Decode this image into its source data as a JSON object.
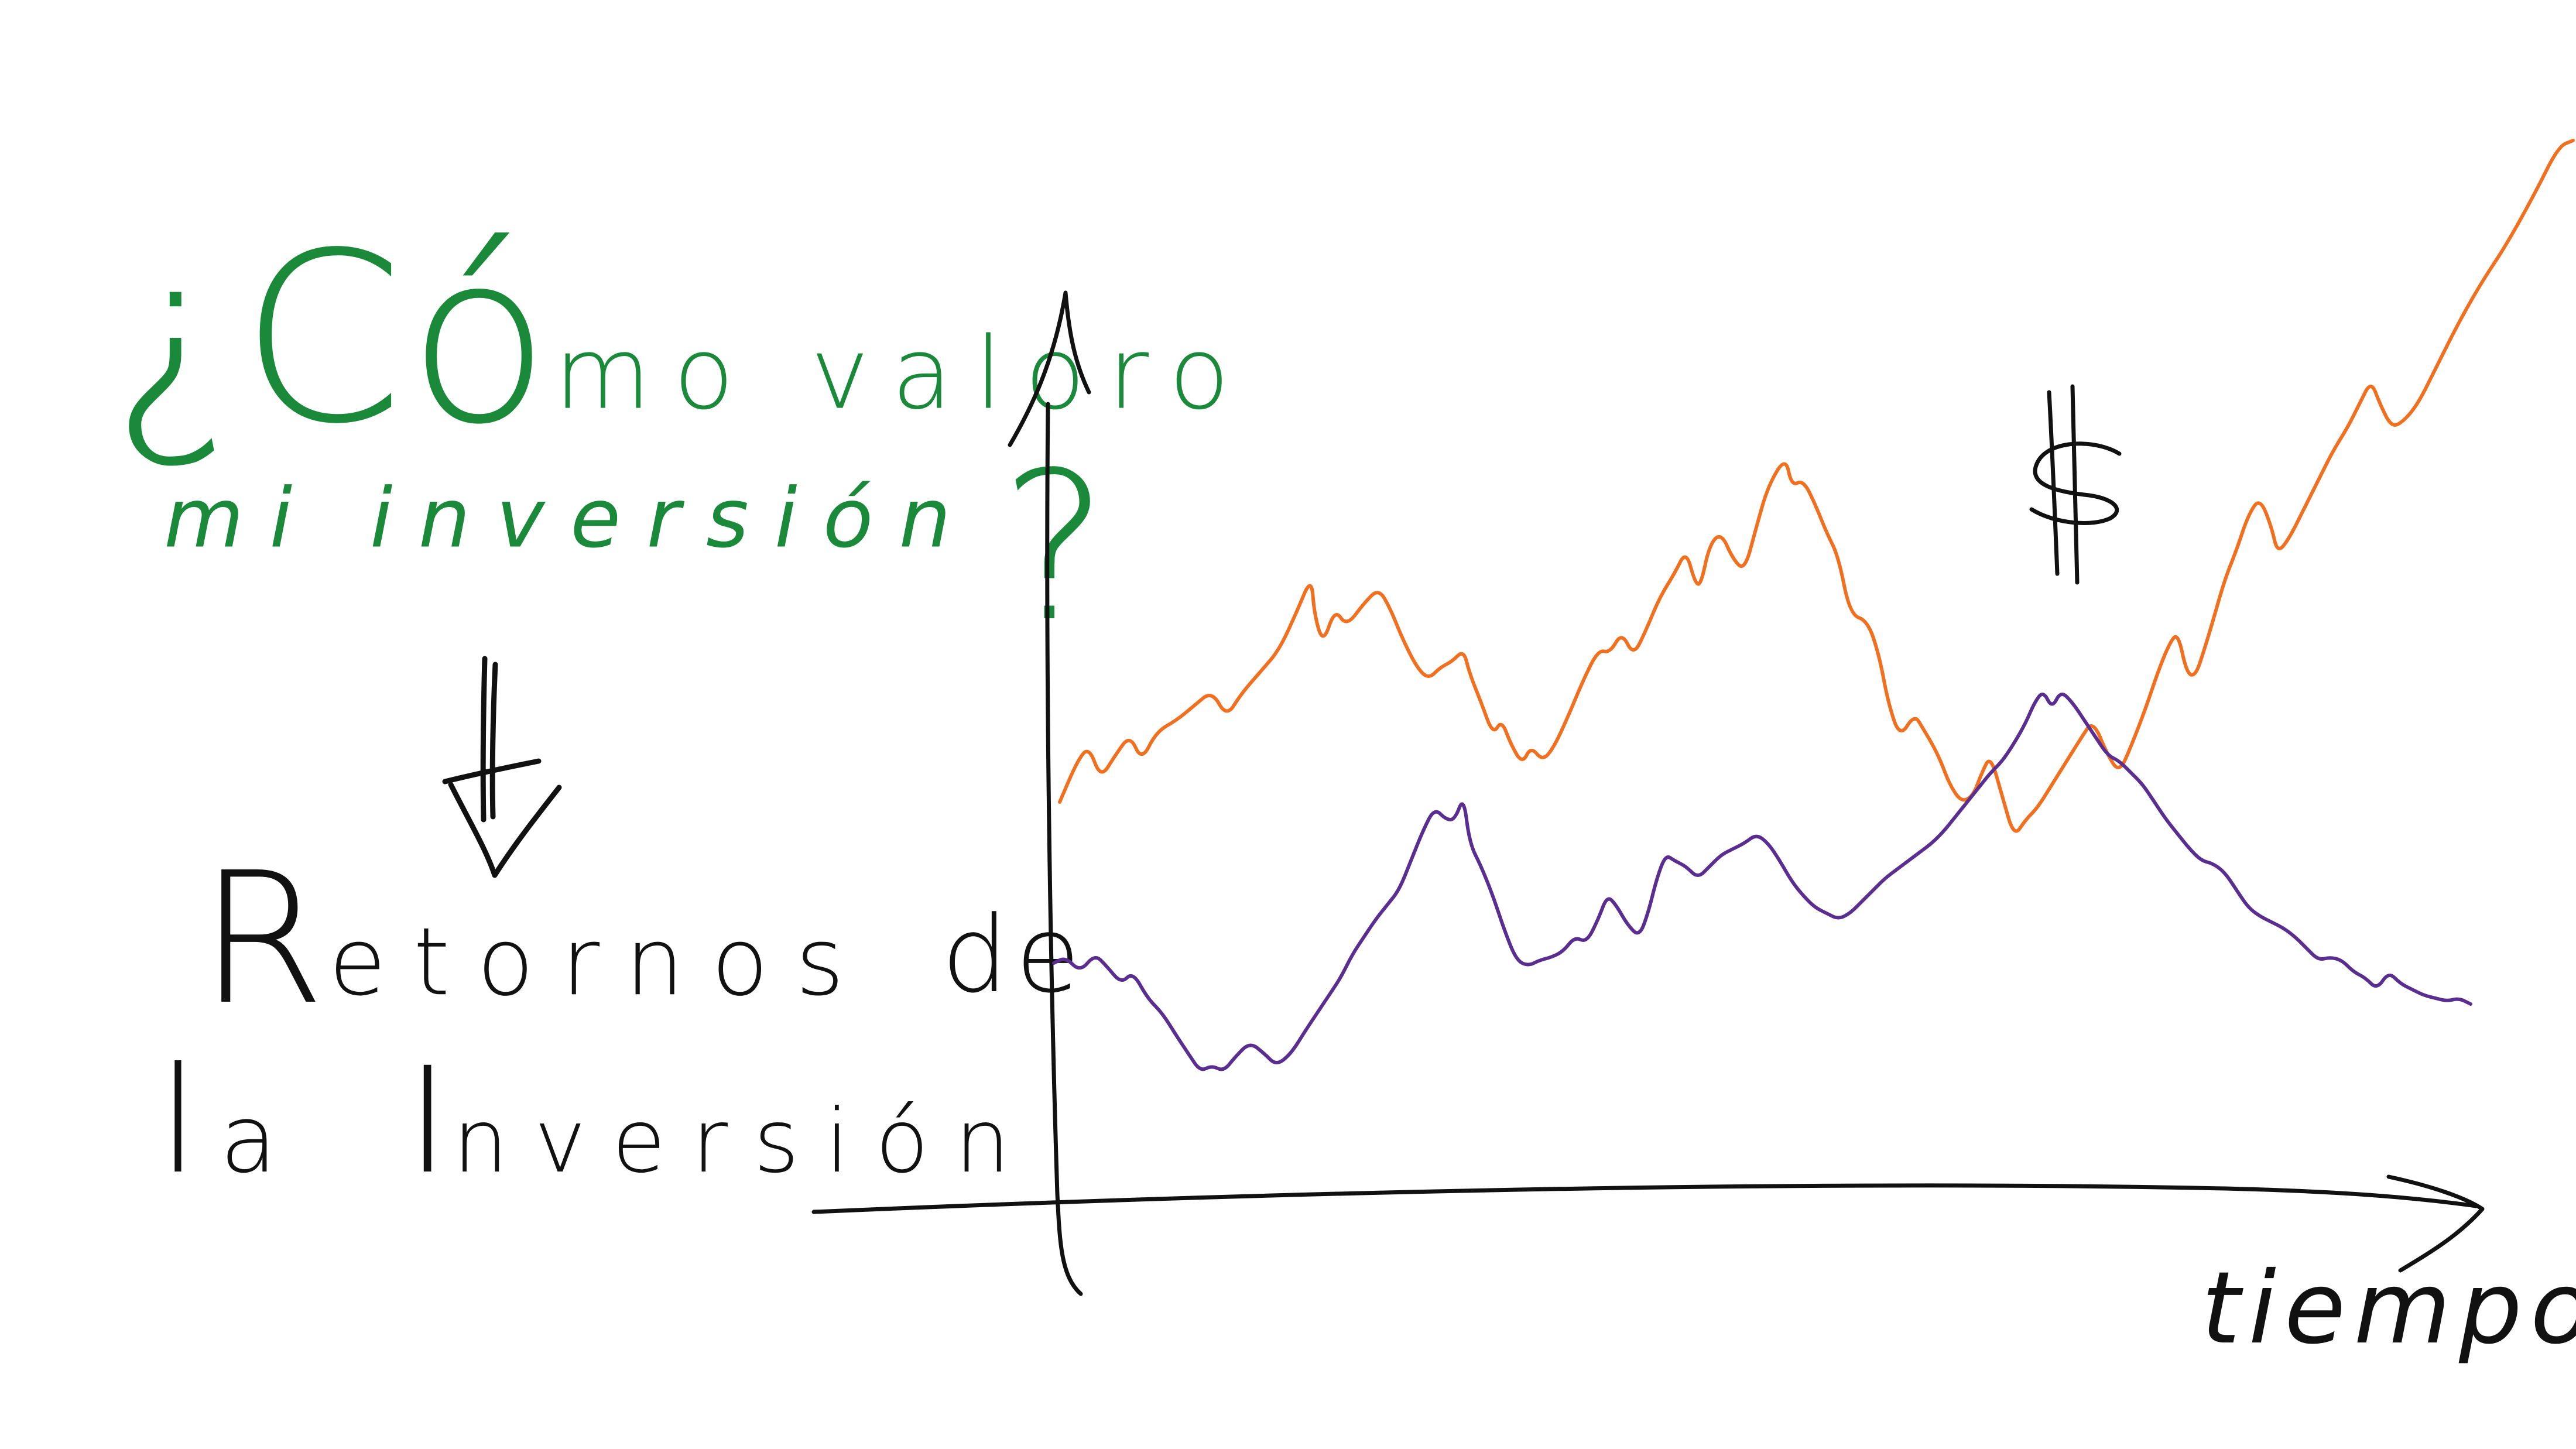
{
  "question": {
    "line1_big": "¿Có",
    "line1_rest": "mo valoro",
    "line2": "mi inversión",
    "line2_mark": "?"
  },
  "answer": {
    "line1_big": "R",
    "line1_rest": "etornos",
    "line1_de": "de",
    "line2_la": "l",
    "line2_la_rest": "a",
    "line2_inv": "I",
    "line2_inv_rest": "nversión"
  },
  "axes": {
    "x_label": "tiempo",
    "y_symbol": "$"
  },
  "colors": {
    "question": "#1a8a3a",
    "ink": "#111111",
    "series_a": "#f07020",
    "series_b": "#5a2d91"
  },
  "icons": {
    "arrow": "down-arrow-icon"
  }
}
